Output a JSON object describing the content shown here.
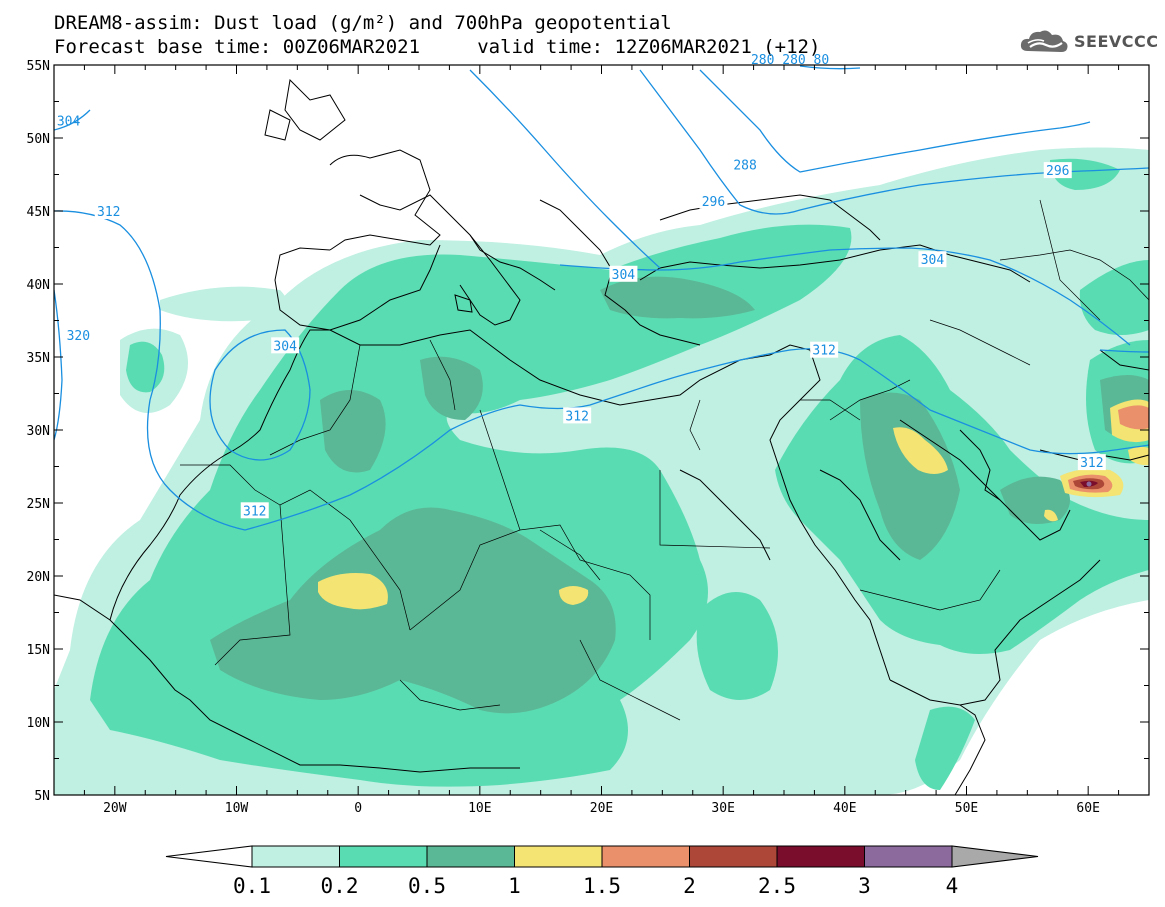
{
  "title": {
    "line1": "DREAM8-assim: Dust load (g/m²) and 700hPa geopotential",
    "line2": "Forecast base time: 00Z06MAR2021     valid time: 12Z06MAR2021 (+12)"
  },
  "logo": {
    "text": "SEEVCCC",
    "icon": "cloud-icon"
  },
  "map": {
    "lon_range": [
      -25,
      65
    ],
    "lat_range": [
      5,
      55
    ],
    "lon_ticks": [
      {
        "value": -20,
        "label": "20W"
      },
      {
        "value": -10,
        "label": "10W"
      },
      {
        "value": 0,
        "label": "0"
      },
      {
        "value": 10,
        "label": "10E"
      },
      {
        "value": 20,
        "label": "20E"
      },
      {
        "value": 30,
        "label": "30E"
      },
      {
        "value": 40,
        "label": "40E"
      },
      {
        "value": 50,
        "label": "50E"
      },
      {
        "value": 60,
        "label": "60E"
      }
    ],
    "lat_ticks": [
      {
        "value": 55,
        "label": "55N"
      },
      {
        "value": 50,
        "label": "50N"
      },
      {
        "value": 45,
        "label": "45N"
      },
      {
        "value": 40,
        "label": "40N"
      },
      {
        "value": 35,
        "label": "35N"
      },
      {
        "value": 30,
        "label": "30N"
      },
      {
        "value": 25,
        "label": "25N"
      },
      {
        "value": 20,
        "label": "20N"
      },
      {
        "value": 15,
        "label": "15N"
      },
      {
        "value": 10,
        "label": "10N"
      },
      {
        "value": 5,
        "label": "5N"
      }
    ],
    "contour_color": "#1a8fe0",
    "contour_labels": [
      {
        "text": "312",
        "lon": -20.5,
        "lat": 45.0
      },
      {
        "text": "304",
        "lon": -23.8,
        "lat": 51.2
      },
      {
        "text": "320",
        "lon": -23.0,
        "lat": 36.5
      },
      {
        "text": "304",
        "lon": -6.0,
        "lat": 35.8
      },
      {
        "text": "312",
        "lon": -8.5,
        "lat": 24.5
      },
      {
        "text": "312",
        "lon": 18.0,
        "lat": 31.0
      },
      {
        "text": "312",
        "lon": 38.3,
        "lat": 35.5
      },
      {
        "text": "304",
        "lon": 21.8,
        "lat": 40.7
      },
      {
        "text": "296",
        "lon": 29.2,
        "lat": 45.7
      },
      {
        "text": "288",
        "lon": 31.8,
        "lat": 48.2
      },
      {
        "text": "296",
        "lon": 57.5,
        "lat": 47.8
      },
      {
        "text": "304",
        "lon": 47.2,
        "lat": 41.7
      },
      {
        "text": "312",
        "lon": 60.3,
        "lat": 27.8
      },
      {
        "text": "280 280 80",
        "lon": 35.5,
        "lat": 55.4
      }
    ]
  },
  "colorbar": {
    "levels": [
      "0.1",
      "0.2",
      "0.5",
      "1",
      "1.5",
      "2",
      "2.5",
      "3",
      "4"
    ],
    "colors": [
      "#bff0e2",
      "#5adcb2",
      "#5ab896",
      "#f3e473",
      "#ea906a",
      "#ad4838",
      "#7a0c2c",
      "#8c6a9e"
    ],
    "under_color": "#ffffff",
    "over_color": "#a9a9a9"
  }
}
